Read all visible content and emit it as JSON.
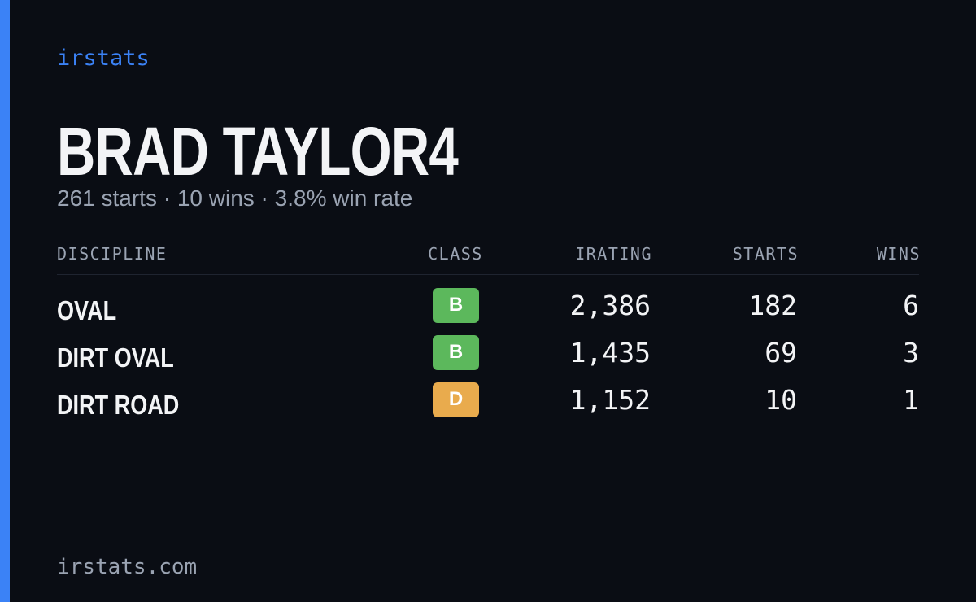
{
  "header": {
    "brand": "irstats",
    "title": "BRAD TAYLOR4",
    "subtitle": "261 starts · 10 wins · 3.8% win rate"
  },
  "table": {
    "columns": [
      "DISCIPLINE",
      "CLASS",
      "IRATING",
      "STARTS",
      "WINS"
    ],
    "rows": [
      [
        "OVAL",
        "B",
        "2,386",
        "182",
        "6"
      ],
      [
        "DIRT OVAL",
        "B",
        "1,435",
        "69",
        "3"
      ],
      [
        "DIRT ROAD",
        "D",
        "1,152",
        "10",
        "1"
      ]
    ],
    "class_colors": [
      "#5cb85c",
      "#5cb85c",
      "#e9ab4d"
    ]
  },
  "footer": {
    "url": "irstats.com"
  }
}
